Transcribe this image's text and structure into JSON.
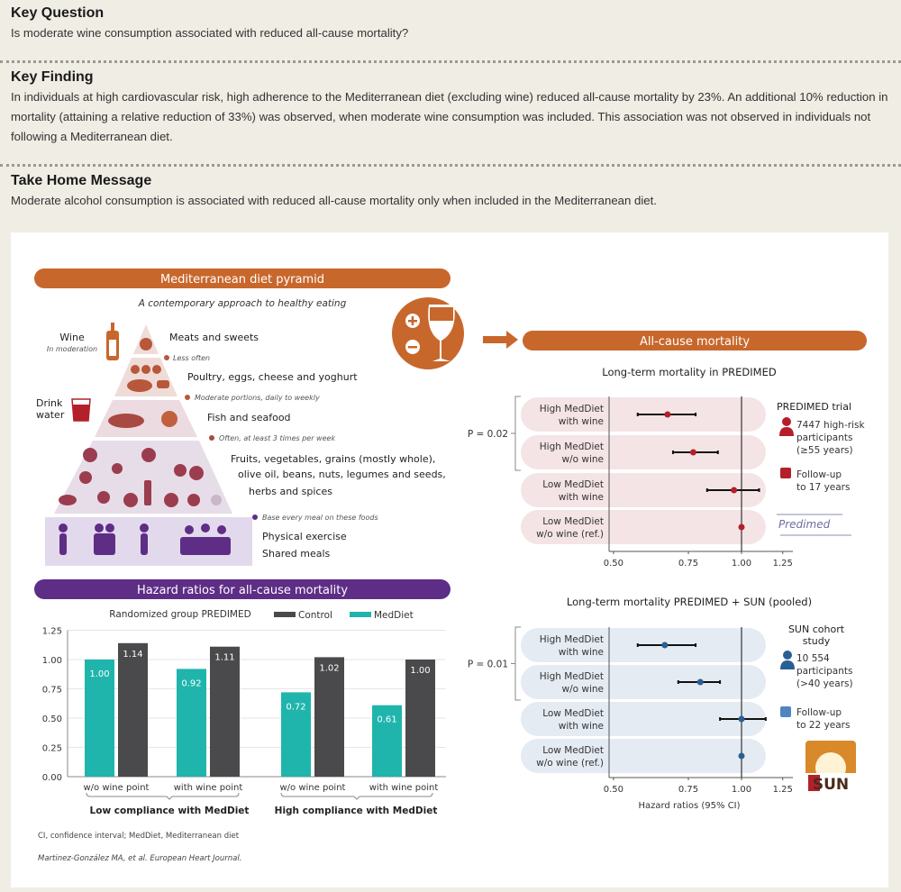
{
  "key_question": {
    "title": "Key Question",
    "text": "Is moderate wine consumption associated with reduced all-cause mortality?"
  },
  "key_finding": {
    "title": "Key Finding",
    "text": "In individuals at high cardiovascular risk, high adherence to the Mediterranean diet (excluding wine) reduced all-cause mortality by 23%. An additional 10% reduction in mortality (attaining a relative reduction of 33%) was observed, when moderate wine consumption was included. This association was not observed in individuals not following a Mediterranean diet."
  },
  "take_home": {
    "title": "Take Home Message",
    "text": "Moderate alcohol consumption is associated with reduced all-cause mortality only when included in the Mediterranean diet."
  },
  "colors": {
    "orange": "#c8672c",
    "purple": "#5e2d86",
    "teal": "#1fb5ad",
    "dark_gray": "#4a4a4c",
    "red": "#b3202a",
    "blue": "#2a5f93",
    "pink_band": "#f4e4e6",
    "blue_band": "#e5ebf3"
  },
  "pyramid": {
    "banner": "Mediterranean diet pyramid",
    "subtitle": "A contemporary approach to healthy eating",
    "wine_label": "Wine",
    "wine_note": "In moderation",
    "water_label": "Drink water",
    "water_line1": "Drink",
    "water_line2": "water",
    "tiers": [
      {
        "label": "Meats and sweets",
        "note": "Less often"
      },
      {
        "label": "Poultry, eggs, cheese and yoghurt",
        "note": "Moderate portions, daily to weekly"
      },
      {
        "label": "Fish and seafood",
        "note": "Often, at least 3 times per week"
      },
      {
        "label_lines": [
          "Fruits, vegetables, grains (mostly whole),",
          "olive oil, beans, nuts, legumes and seeds,",
          "herbs and spices"
        ],
        "note": "Base every meal on these foods"
      },
      {
        "label_lines": [
          "Physical exercise",
          "Shared meals"
        ]
      }
    ],
    "icons": [
      "wine-bottle-icon",
      "water-glass-icon",
      "fish-icon",
      "people-exercise-icon",
      "wine-plus-minus-icon"
    ]
  },
  "footnotes": {
    "abbrev": "CI, confidence interval; MedDiet, Mediterranean diet",
    "citation": "Martinez-González MA, et al. European Heart Journal."
  },
  "right": {
    "banner": "All-cause mortality",
    "predimed_box": {
      "title": "PREDIMED trial",
      "participants": [
        "7447 high-risk",
        "participants",
        "(≥55 years)"
      ],
      "followup": [
        "Follow-up",
        "to 17 years"
      ],
      "logo": "Predimed"
    },
    "sun_box": {
      "title": [
        "SUN cohort",
        "study"
      ],
      "participants": [
        "10 554",
        "participants",
        "(>40 years)"
      ],
      "followup": [
        "Follow-up",
        "to 22 years"
      ],
      "logo": "SUN"
    }
  },
  "chart_data": [
    {
      "type": "bar",
      "title": "Hazard ratios for all-cause mortality",
      "legend_title": "Randomized group PREDIMED",
      "legend_placement": "top",
      "categories": [
        "w/o wine point",
        "with wine point",
        "w/o wine point",
        "with wine point"
      ],
      "groups": [
        "Low compliance with MedDiet",
        "High compliance with MedDiet"
      ],
      "series": [
        {
          "name": "MedDiet",
          "color": "#1fb5ad",
          "values": [
            1.0,
            0.92,
            0.72,
            0.61
          ]
        },
        {
          "name": "Control",
          "color": "#4a4a4c",
          "values": [
            1.14,
            1.11,
            1.02,
            1.0
          ]
        }
      ],
      "data_labels": {
        "MedDiet": [
          "1.00",
          "0.92",
          "0.72",
          "0.61"
        ],
        "Control": [
          "1.14",
          "1.11",
          "1.02",
          "1.00"
        ]
      },
      "ylim": [
        0,
        1.25
      ],
      "yticks": [
        "0.00",
        "0.25",
        "0.50",
        "0.75",
        "1.00",
        "1.25"
      ],
      "grid": true
    },
    {
      "type": "scatter",
      "subtype": "forest",
      "title": "Long-term mortality in PREDIMED",
      "categories": [
        [
          "High MedDiet",
          "with wine"
        ],
        [
          "High MedDiet",
          "w/o wine"
        ],
        [
          "Low MedDiet",
          "with wine"
        ],
        [
          "Low MedDiet",
          "w/o wine (ref.)"
        ]
      ],
      "hr": [
        0.67,
        0.77,
        0.96,
        1.0
      ],
      "ci_low": [
        0.57,
        0.69,
        0.83,
        1.0
      ],
      "ci_high": [
        0.78,
        0.88,
        1.1,
        1.0
      ],
      "color": "#b3202a",
      "p_value": "P = 0.02",
      "xscale": "log",
      "xlim": [
        0.5,
        1.25
      ],
      "xticks": [
        "0.50",
        "0.75",
        "1.00",
        "1.25"
      ],
      "reference_line": 1.0
    },
    {
      "type": "scatter",
      "subtype": "forest",
      "title": "Long-term mortality PREDIMED + SUN (pooled)",
      "categories": [
        [
          "High MedDiet",
          "with wine"
        ],
        [
          "High MedDiet",
          "w/o wine"
        ],
        [
          "Low MedDiet",
          "with wine"
        ],
        [
          "Low MedDiet",
          "w/o wine (ref.)"
        ]
      ],
      "hr": [
        0.66,
        0.8,
        1.0,
        1.0
      ],
      "ci_low": [
        0.57,
        0.71,
        0.89,
        1.0
      ],
      "ci_high": [
        0.78,
        0.89,
        1.14,
        1.0
      ],
      "color": "#2a5f93",
      "p_value": "P = 0.01",
      "xlabel": "Hazard ratios (95% CI)",
      "xscale": "log",
      "xlim": [
        0.5,
        1.25
      ],
      "xticks": [
        "0.50",
        "0.75",
        "1.00",
        "1.25"
      ],
      "reference_line": 1.0
    }
  ]
}
